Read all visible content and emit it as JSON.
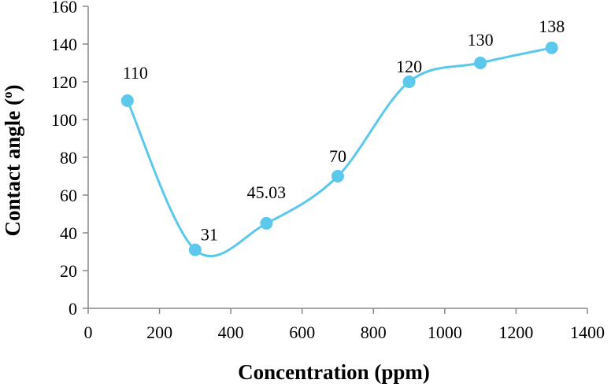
{
  "chart_data": {
    "type": "line",
    "title": "",
    "xlabel": "Concentration (ppm)",
    "ylabel": "Contact angle (",
    "ylabel_superscript": "o",
    "ylabel_close": ")",
    "xlim": [
      0,
      1400
    ],
    "ylim": [
      0,
      160
    ],
    "x_ticks": [
      0,
      200,
      400,
      600,
      800,
      1000,
      1200,
      1400
    ],
    "y_ticks": [
      0,
      20,
      40,
      60,
      80,
      100,
      120,
      140,
      160
    ],
    "grid": false,
    "smooth": true,
    "series": [
      {
        "name": "Contact angle",
        "color": "#5bc8ec",
        "x": [
          110,
          300,
          500,
          700,
          900,
          1100,
          1300
        ],
        "y": [
          110,
          31,
          45.03,
          70,
          120,
          130,
          138
        ],
        "labels": [
          "110",
          "31",
          "45.03",
          "70",
          "120",
          "130",
          "138"
        ]
      }
    ]
  }
}
